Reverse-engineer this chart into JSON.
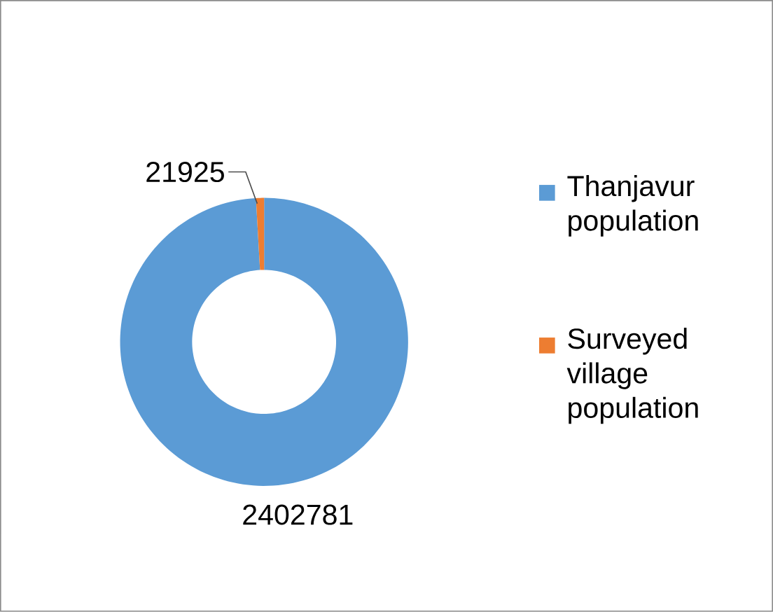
{
  "chart_data": {
    "type": "donut",
    "categories": [
      "Thanjavur population",
      "Surveyed village population"
    ],
    "values": [
      2402781,
      21925
    ],
    "colors": [
      "#5b9bd5",
      "#ed7d31"
    ],
    "data_labels": true,
    "legend": "right"
  }
}
